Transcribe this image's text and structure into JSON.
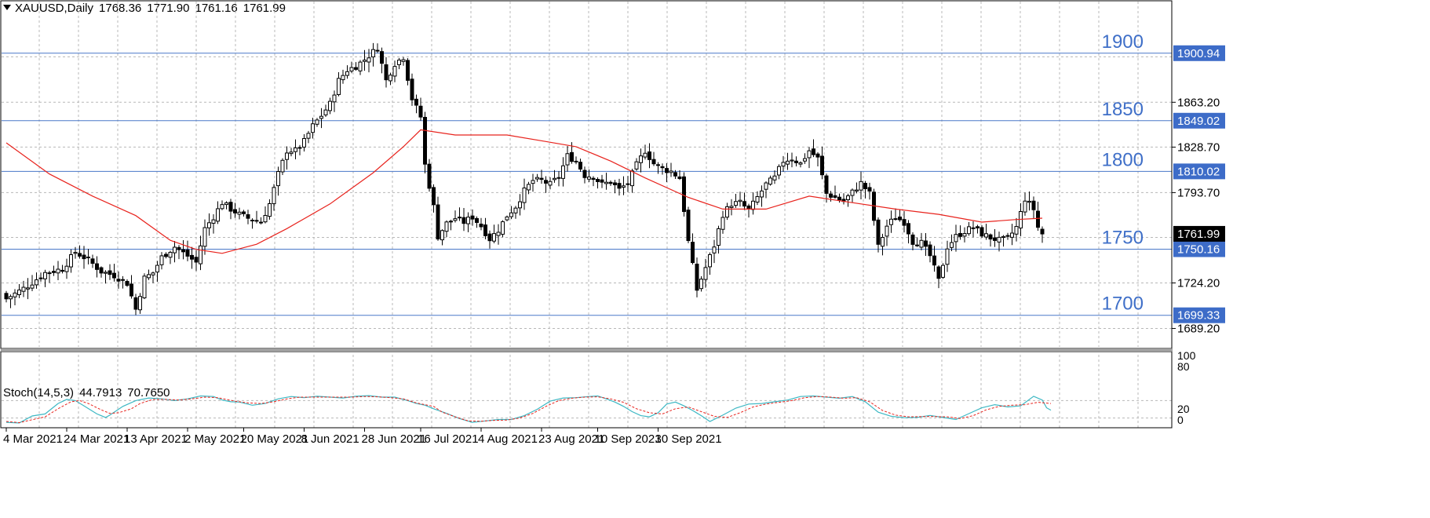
{
  "header": {
    "symbol": "XAUUSD,Daily",
    "open": "1768.36",
    "high": "1771.90",
    "low": "1761.16",
    "close": "1761.99"
  },
  "indicator": {
    "name": "Stoch(14,5,3)",
    "k_value": "44.7913",
    "d_value": "70.7650"
  },
  "colors": {
    "ma_line": "#e8231d",
    "stoch_main": "#3db8c4",
    "stoch_signal": "#e8231d",
    "level_line": "#4a78c8",
    "level_label": "#3f6fc8",
    "grid": "#b8b8b8"
  },
  "chart_data": {
    "type": "candlestick",
    "symbol": "XAUUSD",
    "timeframe": "Daily",
    "price_axis_ticks": [
      "1863.20",
      "1828.70",
      "1793.70",
      "1724.20",
      "1689.20"
    ],
    "date_labels": [
      "4 Mar 2021",
      "24 Mar 2021",
      "13 Apr 2021",
      "2 May 2021",
      "20 May 2021",
      "8 Jun 2021",
      "28 Jun 2021",
      "16 Jul 2021",
      "4 Aug 2021",
      "23 Aug 2021",
      "10 Sep 2021",
      "30 Sep 2021"
    ],
    "levels": [
      {
        "label": "1900",
        "price": 1900.94,
        "tag": "1900.94"
      },
      {
        "label": "1850",
        "price": 1849.02,
        "tag": "1849.02"
      },
      {
        "label": "1800",
        "price": 1810.02,
        "tag": "1810.02"
      },
      {
        "label": "1750",
        "price": 1750.16,
        "tag": "1750.16"
      },
      {
        "label": "1700",
        "price": 1699.33,
        "tag": "1699.33"
      }
    ],
    "current_price": "1761.99",
    "ylim": [
      1675,
      1931
    ],
    "anchors": [
      [
        0,
        1712
      ],
      [
        5,
        1722
      ],
      [
        9,
        1732
      ],
      [
        13,
        1735
      ],
      [
        16,
        1748
      ],
      [
        19,
        1742
      ],
      [
        22,
        1733
      ],
      [
        25,
        1730
      ],
      [
        28,
        1724
      ],
      [
        30,
        1704
      ],
      [
        32,
        1728
      ],
      [
        34,
        1732
      ],
      [
        36,
        1744
      ],
      [
        39,
        1752
      ],
      [
        42,
        1745
      ],
      [
        44,
        1740
      ],
      [
        46,
        1766
      ],
      [
        48,
        1775
      ],
      [
        50,
        1786
      ],
      [
        52,
        1781
      ],
      [
        54,
        1777
      ],
      [
        56,
        1774
      ],
      [
        59,
        1771
      ],
      [
        61,
        1785
      ],
      [
        63,
        1808
      ],
      [
        65,
        1826
      ],
      [
        67,
        1826
      ],
      [
        69,
        1833
      ],
      [
        71,
        1845
      ],
      [
        73,
        1853
      ],
      [
        75,
        1862
      ],
      [
        77,
        1880
      ],
      [
        79,
        1888
      ],
      [
        81,
        1891
      ],
      [
        83,
        1896
      ],
      [
        85,
        1902
      ],
      [
        86,
        1905
      ],
      [
        88,
        1880
      ],
      [
        90,
        1893
      ],
      [
        92,
        1898
      ],
      [
        94,
        1866
      ],
      [
        96,
        1852
      ],
      [
        97,
        1815
      ],
      [
        99,
        1783
      ],
      [
        100,
        1760
      ],
      [
        102,
        1770
      ],
      [
        104,
        1774
      ],
      [
        106,
        1771
      ],
      [
        108,
        1775
      ],
      [
        110,
        1768
      ],
      [
        112,
        1758
      ],
      [
        114,
        1765
      ],
      [
        116,
        1776
      ],
      [
        118,
        1783
      ],
      [
        120,
        1795
      ],
      [
        122,
        1803
      ],
      [
        124,
        1803
      ],
      [
        126,
        1800
      ],
      [
        128,
        1806
      ],
      [
        130,
        1822
      ],
      [
        132,
        1818
      ],
      [
        134,
        1807
      ],
      [
        136,
        1806
      ],
      [
        138,
        1800
      ],
      [
        140,
        1802
      ],
      [
        142,
        1796
      ],
      [
        144,
        1801
      ],
      [
        146,
        1815
      ],
      [
        148,
        1826
      ],
      [
        150,
        1816
      ],
      [
        152,
        1812
      ],
      [
        154,
        1810
      ],
      [
        156,
        1805
      ],
      [
        158,
        1756
      ],
      [
        160,
        1719
      ],
      [
        162,
        1736
      ],
      [
        164,
        1753
      ],
      [
        166,
        1777
      ],
      [
        168,
        1785
      ],
      [
        170,
        1786
      ],
      [
        172,
        1780
      ],
      [
        174,
        1790
      ],
      [
        176,
        1800
      ],
      [
        178,
        1805
      ],
      [
        180,
        1818
      ],
      [
        182,
        1820
      ],
      [
        184,
        1816
      ],
      [
        186,
        1826
      ],
      [
        188,
        1820
      ],
      [
        190,
        1793
      ],
      [
        192,
        1790
      ],
      [
        194,
        1787
      ],
      [
        196,
        1794
      ],
      [
        198,
        1801
      ],
      [
        200,
        1793
      ],
      [
        202,
        1752
      ],
      [
        204,
        1768
      ],
      [
        206,
        1775
      ],
      [
        208,
        1771
      ],
      [
        210,
        1756
      ],
      [
        212,
        1755
      ],
      [
        214,
        1745
      ],
      [
        216,
        1726
      ],
      [
        218,
        1752
      ],
      [
        220,
        1760
      ],
      [
        222,
        1764
      ],
      [
        224,
        1767
      ],
      [
        226,
        1762
      ],
      [
        228,
        1759
      ],
      [
        230,
        1757
      ],
      [
        232,
        1758
      ],
      [
        234,
        1767
      ],
      [
        236,
        1789
      ],
      [
        238,
        1781
      ],
      [
        239,
        1767
      ],
      [
        240,
        1762
      ]
    ],
    "overlays": [
      {
        "type": "moving_average",
        "color": "#e8231d",
        "points": [
          [
            0,
            1832
          ],
          [
            10,
            1808
          ],
          [
            20,
            1791
          ],
          [
            30,
            1776
          ],
          [
            38,
            1757
          ],
          [
            44,
            1750
          ],
          [
            50,
            1747
          ],
          [
            58,
            1754
          ],
          [
            65,
            1766
          ],
          [
            75,
            1785
          ],
          [
            85,
            1809
          ],
          [
            92,
            1829
          ],
          [
            96,
            1842
          ],
          [
            104,
            1838
          ],
          [
            116,
            1838
          ],
          [
            125,
            1833
          ],
          [
            132,
            1829
          ],
          [
            140,
            1818
          ],
          [
            148,
            1805
          ],
          [
            158,
            1790
          ],
          [
            166,
            1781
          ],
          [
            176,
            1781
          ],
          [
            186,
            1791
          ],
          [
            196,
            1786
          ],
          [
            206,
            1781
          ],
          [
            216,
            1777
          ],
          [
            226,
            1771
          ],
          [
            234,
            1773
          ],
          [
            240,
            1774
          ]
        ]
      }
    ],
    "stochastic": {
      "params": "14,5,3",
      "ylim": [
        0,
        100
      ],
      "levels": [
        20,
        80
      ],
      "axis_ticks": [
        "100",
        "80",
        "20",
        "0"
      ],
      "main_points": [
        [
          0,
          5
        ],
        [
          3,
          3
        ],
        [
          6,
          27
        ],
        [
          9,
          34
        ],
        [
          12,
          70
        ],
        [
          14,
          84
        ],
        [
          16,
          80
        ],
        [
          18,
          62
        ],
        [
          21,
          34
        ],
        [
          23,
          22
        ],
        [
          24,
          30
        ],
        [
          27,
          60
        ],
        [
          30,
          80
        ],
        [
          33,
          89
        ],
        [
          36,
          86
        ],
        [
          39,
          80
        ],
        [
          42,
          86
        ],
        [
          45,
          96
        ],
        [
          48,
          94
        ],
        [
          50,
          82
        ],
        [
          52,
          76
        ],
        [
          54,
          75
        ],
        [
          57,
          64
        ],
        [
          60,
          70
        ],
        [
          63,
          86
        ],
        [
          66,
          94
        ],
        [
          69,
          90
        ],
        [
          72,
          95
        ],
        [
          75,
          92
        ],
        [
          78,
          89
        ],
        [
          81,
          95
        ],
        [
          84,
          97
        ],
        [
          87,
          92
        ],
        [
          90,
          92
        ],
        [
          93,
          80
        ],
        [
          95,
          70
        ],
        [
          97,
          64
        ],
        [
          99,
          52
        ],
        [
          102,
          36
        ],
        [
          105,
          18
        ],
        [
          108,
          5
        ],
        [
          111,
          10
        ],
        [
          114,
          15
        ],
        [
          117,
          15
        ],
        [
          120,
          28
        ],
        [
          123,
          50
        ],
        [
          126,
          78
        ],
        [
          129,
          89
        ],
        [
          132,
          90
        ],
        [
          135,
          94
        ],
        [
          137,
          96
        ],
        [
          139,
          86
        ],
        [
          141,
          75
        ],
        [
          143,
          60
        ],
        [
          145,
          42
        ],
        [
          147,
          28
        ],
        [
          149,
          24
        ],
        [
          151,
          38
        ],
        [
          153,
          68
        ],
        [
          155,
          75
        ],
        [
          157,
          62
        ],
        [
          159,
          46
        ],
        [
          161,
          28
        ],
        [
          163,
          8
        ],
        [
          166,
          30
        ],
        [
          169,
          54
        ],
        [
          172,
          68
        ],
        [
          175,
          70
        ],
        [
          178,
          76
        ],
        [
          181,
          82
        ],
        [
          184,
          94
        ],
        [
          187,
          96
        ],
        [
          190,
          92
        ],
        [
          193,
          88
        ],
        [
          196,
          94
        ],
        [
          199,
          76
        ],
        [
          202,
          40
        ],
        [
          205,
          26
        ],
        [
          208,
          21
        ],
        [
          211,
          22
        ],
        [
          214,
          29
        ],
        [
          217,
          22
        ],
        [
          220,
          15
        ],
        [
          223,
          35
        ],
        [
          226,
          55
        ],
        [
          229,
          66
        ],
        [
          232,
          58
        ],
        [
          235,
          62
        ],
        [
          238,
          95
        ],
        [
          240,
          82
        ],
        [
          241,
          55
        ],
        [
          242,
          47
        ]
      ],
      "signal_points": [
        [
          0,
          8
        ],
        [
          3,
          4
        ],
        [
          6,
          14
        ],
        [
          9,
          24
        ],
        [
          12,
          52
        ],
        [
          15,
          76
        ],
        [
          17,
          80
        ],
        [
          19,
          70
        ],
        [
          22,
          48
        ],
        [
          24,
          36
        ],
        [
          26,
          38
        ],
        [
          29,
          52
        ],
        [
          31,
          70
        ],
        [
          34,
          84
        ],
        [
          37,
          84
        ],
        [
          40,
          82
        ],
        [
          43,
          86
        ],
        [
          46,
          92
        ],
        [
          49,
          90
        ],
        [
          51,
          84
        ],
        [
          53,
          78
        ],
        [
          56,
          72
        ],
        [
          59,
          70
        ],
        [
          62,
          76
        ],
        [
          65,
          86
        ],
        [
          68,
          92
        ],
        [
          71,
          92
        ],
        [
          74,
          92
        ],
        [
          77,
          92
        ],
        [
          80,
          92
        ],
        [
          83,
          94
        ],
        [
          86,
          93
        ],
        [
          89,
          90
        ],
        [
          92,
          86
        ],
        [
          95,
          72
        ],
        [
          97,
          66
        ],
        [
          99,
          60
        ],
        [
          101,
          40
        ],
        [
          104,
          24
        ],
        [
          107,
          10
        ],
        [
          110,
          9
        ],
        [
          113,
          12
        ],
        [
          116,
          13
        ],
        [
          119,
          20
        ],
        [
          122,
          36
        ],
        [
          125,
          60
        ],
        [
          128,
          80
        ],
        [
          131,
          88
        ],
        [
          134,
          92
        ],
        [
          137,
          93
        ],
        [
          140,
          86
        ],
        [
          143,
          74
        ],
        [
          146,
          52
        ],
        [
          149,
          38
        ],
        [
          152,
          34
        ],
        [
          155,
          52
        ],
        [
          158,
          58
        ],
        [
          161,
          42
        ],
        [
          164,
          26
        ],
        [
          167,
          22
        ],
        [
          170,
          38
        ],
        [
          173,
          58
        ],
        [
          176,
          68
        ],
        [
          179,
          74
        ],
        [
          182,
          80
        ],
        [
          185,
          90
        ],
        [
          188,
          94
        ],
        [
          191,
          92
        ],
        [
          194,
          88
        ],
        [
          197,
          90
        ],
        [
          200,
          76
        ],
        [
          203,
          46
        ],
        [
          206,
          30
        ],
        [
          209,
          24
        ],
        [
          212,
          25
        ],
        [
          215,
          25
        ],
        [
          218,
          24
        ],
        [
          221,
          18
        ],
        [
          224,
          28
        ],
        [
          227,
          48
        ],
        [
          230,
          60
        ],
        [
          233,
          64
        ],
        [
          236,
          66
        ],
        [
          239,
          74
        ],
        [
          242,
          70
        ]
      ]
    }
  }
}
